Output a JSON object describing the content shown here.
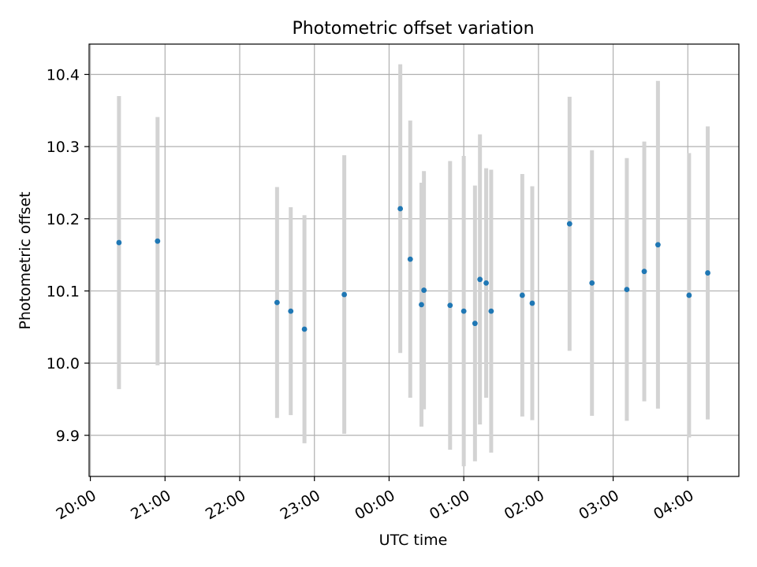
{
  "chart_data": {
    "type": "scatter",
    "title": "Photometric offset variation",
    "xlabel": "UTC time",
    "ylabel": "Photometric offset",
    "x_ticks": [
      "20:00",
      "21:00",
      "22:00",
      "23:00",
      "00:00",
      "01:00",
      "02:00",
      "03:00",
      "04:00"
    ],
    "y_ticks": [
      "9.9",
      "10.0",
      "10.1",
      "10.2",
      "10.3",
      "10.4"
    ],
    "xlim": [
      "19:59",
      "04:41"
    ],
    "ylim": [
      9.843,
      10.442
    ],
    "grid": true,
    "colors": {
      "points": "#1f77b4",
      "errorbars": "#d3d3d3",
      "grid": "#b0b0b0"
    },
    "series": [
      {
        "points": [
          {
            "t": "20:23",
            "y": 10.167,
            "err": 0.203
          },
          {
            "t": "20:54",
            "y": 10.169,
            "err": 0.172
          },
          {
            "t": "22:30",
            "y": 10.084,
            "err": 0.16
          },
          {
            "t": "22:41",
            "y": 10.072,
            "err": 0.144
          },
          {
            "t": "22:52",
            "y": 10.047,
            "err": 0.158
          },
          {
            "t": "23:24",
            "y": 10.095,
            "err": 0.193
          },
          {
            "t": "00:09",
            "y": 10.214,
            "err": 0.2
          },
          {
            "t": "00:17",
            "y": 10.144,
            "err": 0.192
          },
          {
            "t": "00:26",
            "y": 10.081,
            "err": 0.169
          },
          {
            "t": "00:28",
            "y": 10.101,
            "err": 0.165
          },
          {
            "t": "00:49",
            "y": 10.08,
            "err": 0.2
          },
          {
            "t": "01:00",
            "y": 10.072,
            "err": 0.215
          },
          {
            "t": "01:09",
            "y": 10.055,
            "err": 0.191
          },
          {
            "t": "01:13",
            "y": 10.116,
            "err": 0.201
          },
          {
            "t": "01:18",
            "y": 10.111,
            "err": 0.159
          },
          {
            "t": "01:22",
            "y": 10.072,
            "err": 0.196
          },
          {
            "t": "01:47",
            "y": 10.094,
            "err": 0.168
          },
          {
            "t": "01:55",
            "y": 10.083,
            "err": 0.162
          },
          {
            "t": "02:25",
            "y": 10.193,
            "err": 0.176
          },
          {
            "t": "02:43",
            "y": 10.111,
            "err": 0.184
          },
          {
            "t": "03:11",
            "y": 10.102,
            "err": 0.182
          },
          {
            "t": "03:25",
            "y": 10.127,
            "err": 0.18
          },
          {
            "t": "03:36",
            "y": 10.164,
            "err": 0.227
          },
          {
            "t": "04:01",
            "y": 10.094,
            "err": 0.197
          },
          {
            "t": "04:16",
            "y": 10.125,
            "err": 0.203
          }
        ]
      }
    ]
  }
}
